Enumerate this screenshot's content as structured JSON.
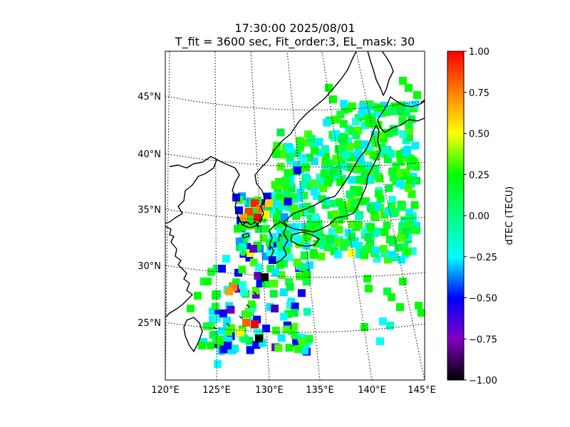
{
  "title": {
    "line1": "17:30:00 2025/08/01",
    "line2": "T_fit = 3600 sec, Fit_order:3, EL_mask: 30"
  },
  "map": {
    "lon_ticks": [
      "120°E",
      "125°E",
      "130°E",
      "135°E",
      "140°E",
      "145°E"
    ],
    "lat_ticks": [
      "25°N",
      "30°N",
      "35°N",
      "40°N",
      "45°N"
    ]
  },
  "colorbar": {
    "label": "dTEC (TECU)",
    "ticks": [
      "1.00",
      "0.75",
      "0.50",
      "0.25",
      "0.00",
      "−0.25",
      "−0.50",
      "−0.75",
      "−1.00"
    ],
    "range": [
      -1.0,
      1.0
    ],
    "colormap": [
      "#ff0000",
      "#ff8000",
      "#ffff00",
      "#00ff00",
      "#00ffff",
      "#0000ff",
      "#8000c0",
      "#000000"
    ]
  }
}
